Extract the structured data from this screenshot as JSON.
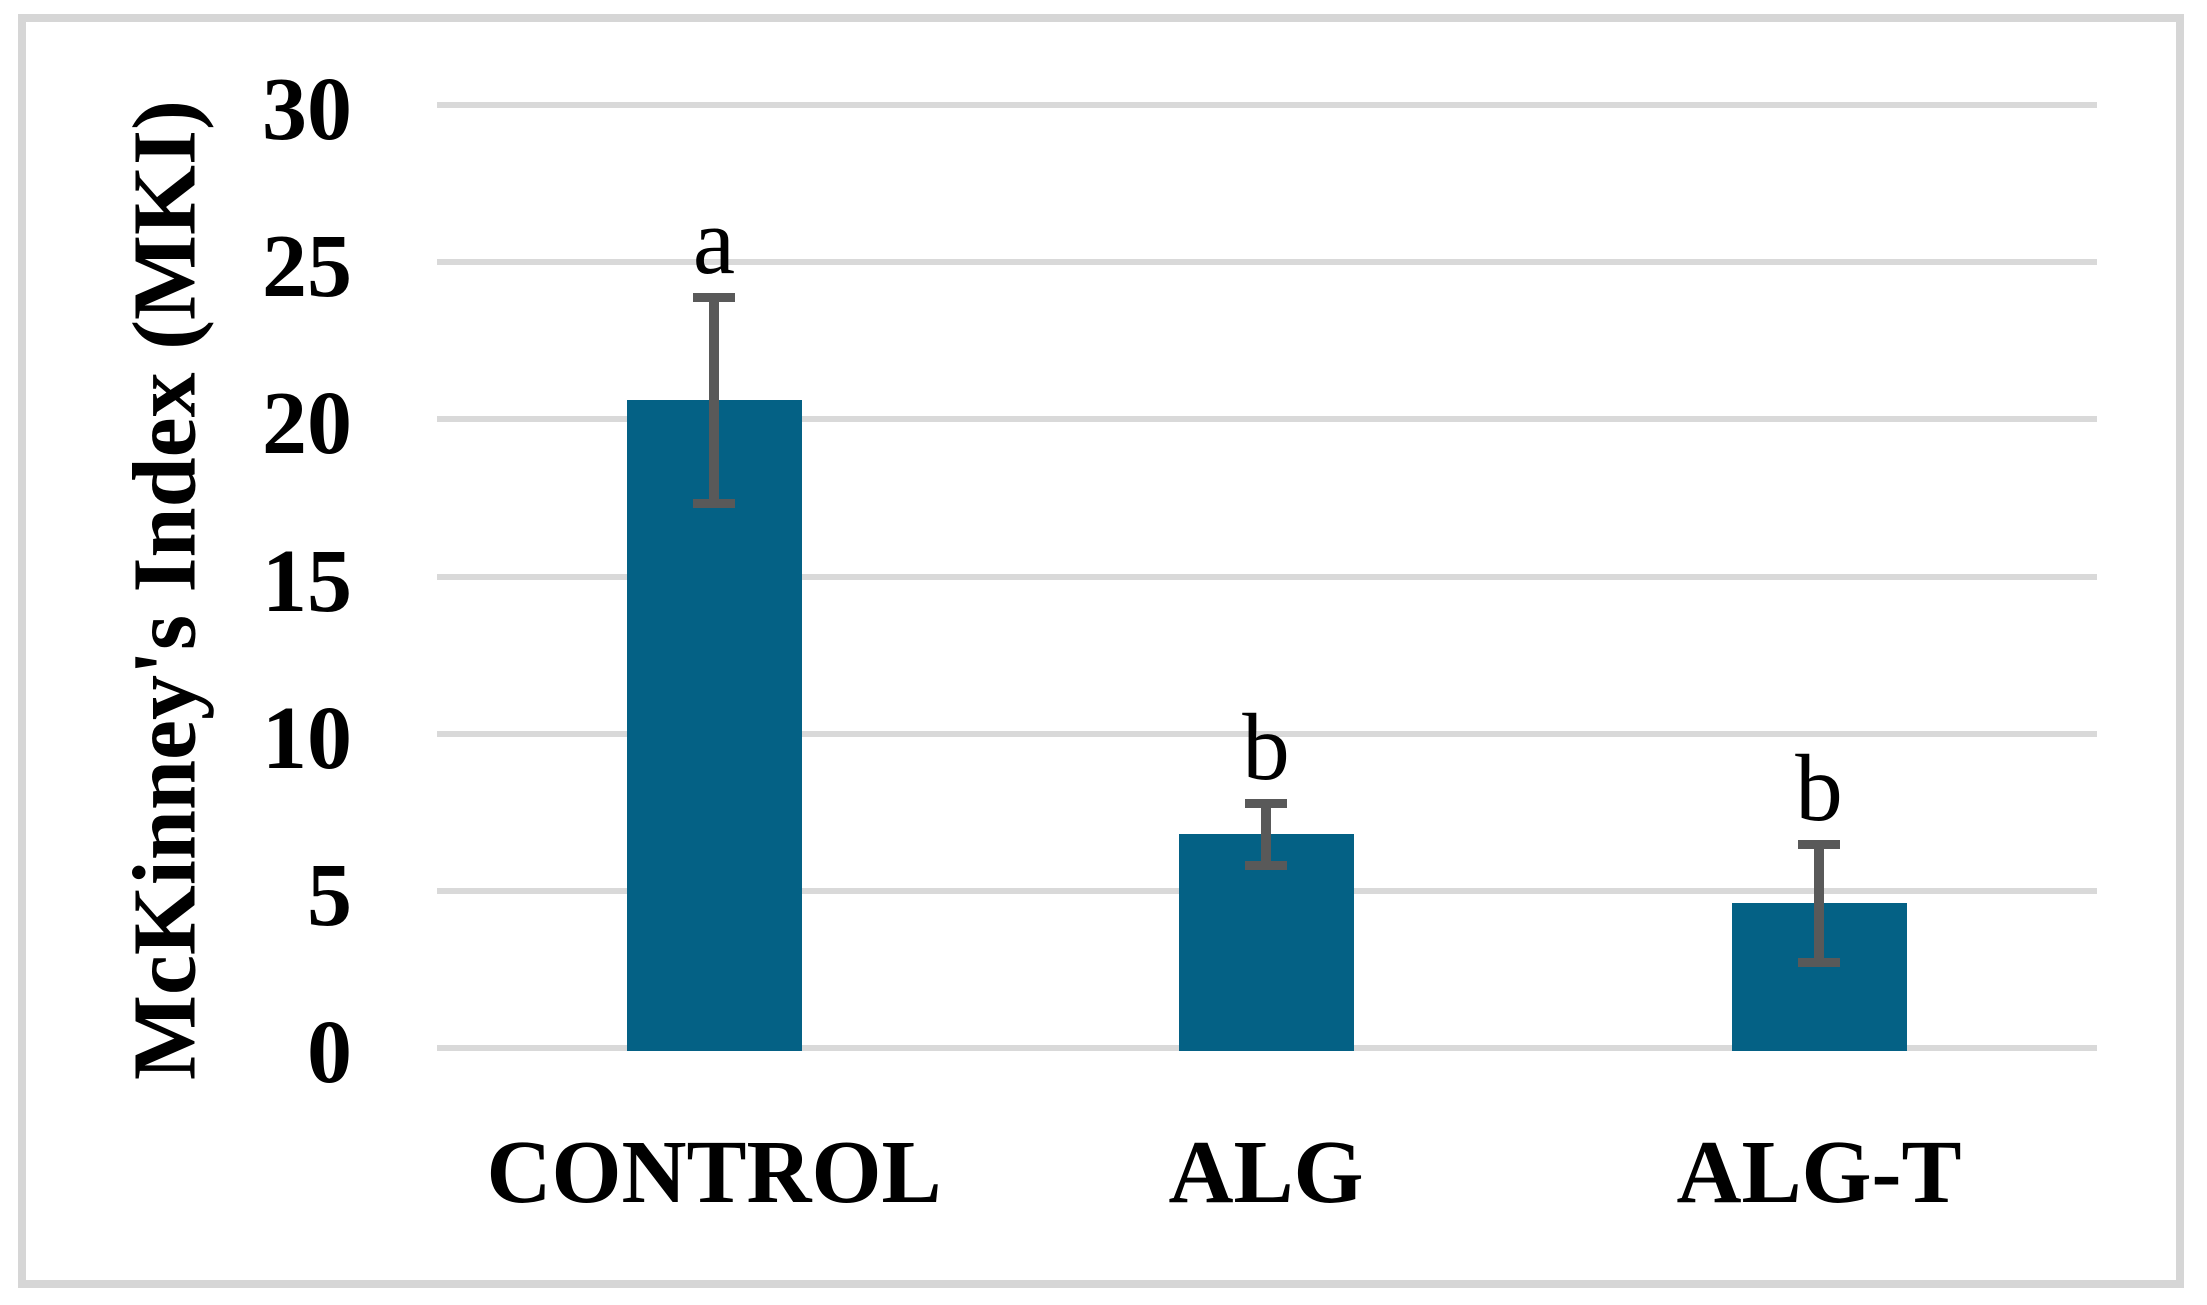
{
  "figure": {
    "background_color": "#FFFFFF",
    "border_color": "#D6D6D6"
  },
  "chart_data": {
    "type": "bar",
    "title": "",
    "xlabel": "",
    "ylabel": "McKinney's Index (MKI)",
    "categories": [
      "CONTROL",
      "ALG",
      "ALG-T"
    ],
    "values": [
      20.6,
      6.8,
      4.6
    ],
    "error_bars": [
      3.3,
      1.0,
      1.9
    ],
    "sig_letters": [
      "a",
      "b",
      "b"
    ],
    "yticks": [
      0,
      5,
      10,
      15,
      20,
      25,
      30
    ],
    "ylim": [
      0,
      30
    ],
    "grid": true,
    "legend_position": "none",
    "bar_color": "#046185",
    "error_bar_color": "#595959",
    "gridline_color": "#D9D9D9"
  }
}
